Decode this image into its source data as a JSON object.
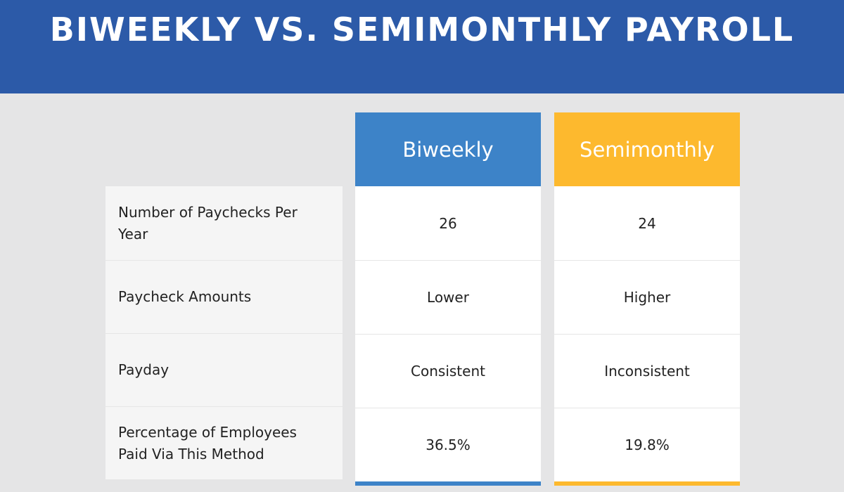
{
  "header": {
    "title": "BIWEEKLY VS. SEMIMONTHLY PAYROLL"
  },
  "table": {
    "columns": [
      {
        "label": "Biweekly",
        "color": "#3d83c8"
      },
      {
        "label": "Semimonthly",
        "color": "#fdb92e"
      }
    ],
    "rows": [
      {
        "label": "Number of Paychecks Per Year",
        "biweekly": "26",
        "semimonthly": "24"
      },
      {
        "label": "Paycheck Amounts",
        "biweekly": "Lower",
        "semimonthly": "Higher"
      },
      {
        "label": "Payday",
        "biweekly": "Consistent",
        "semimonthly": "Inconsistent"
      },
      {
        "label": "Percentage of Employees Paid Via This Method",
        "biweekly": "36.5%",
        "semimonthly": "19.8%"
      }
    ]
  },
  "colors": {
    "header_bg": "#2c5aa8",
    "page_bg": "#e5e5e6"
  }
}
